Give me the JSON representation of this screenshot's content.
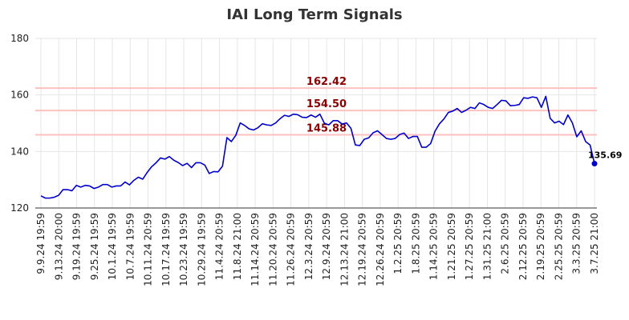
{
  "chart_data": {
    "type": "line",
    "title": "IAI Long Term Signals",
    "xlabel": "",
    "ylabel": "",
    "ylim": [
      120,
      180
    ],
    "yticks": [
      120,
      140,
      160,
      180
    ],
    "grid": true,
    "legend": "none",
    "line_color": "#0000cc",
    "level_color": "#8b0000",
    "level_line_color": "#ffc0c0",
    "levels": [
      {
        "value": 162.42,
        "label": "162.42"
      },
      {
        "value": 154.5,
        "label": "154.50"
      },
      {
        "value": 145.88,
        "label": "145.88"
      }
    ],
    "last_label": "135.69",
    "x_tick_labels": [
      "9.9.24 19:59",
      "9.13.24 20:00",
      "9.19.24 19:59",
      "9.25.24 19:59",
      "10.1.24 19:59",
      "10.7.24 19:59",
      "10.11.24 20:59",
      "10.17.24 19:59",
      "10.23.24 19:59",
      "10.29.24 19:59",
      "11.4.24 20:59",
      "11.8.24 21:00",
      "11.14.24 20:59",
      "11.20.24 20:59",
      "11.26.24 20:59",
      "12.3.24 20:59",
      "12.9.24 20:59",
      "12.13.24 21:00",
      "12.19.24 20:59",
      "12.26.24 20:59",
      "1.2.25 20:59",
      "1.8.25 20:59",
      "1.14.25 20:59",
      "1.21.25 20:59",
      "1.27.25 20:59",
      "1.31.25 21:00",
      "2.6.25 20:59",
      "2.12.25 20:59",
      "2.19.25 20:59",
      "2.25.25 20:59",
      "3.3.25 20:59",
      "3.7.25 21:00"
    ],
    "values": [
      124.3,
      123.5,
      123.5,
      123.8,
      124.5,
      126.5,
      126.5,
      126.1,
      128.0,
      127.4,
      128.0,
      127.8,
      126.9,
      127.4,
      128.3,
      128.3,
      127.4,
      127.8,
      127.8,
      129.2,
      128.2,
      129.8,
      130.9,
      130.2,
      132.6,
      134.6,
      136.0,
      137.7,
      137.3,
      138.2,
      136.9,
      136.1,
      135.0,
      135.8,
      134.3,
      136.0,
      136.0,
      135.2,
      132.2,
      132.9,
      132.8,
      134.8,
      144.9,
      143.5,
      145.7,
      150.1,
      149.2,
      148.0,
      147.6,
      148.4,
      149.8,
      149.4,
      149.2,
      150.1,
      151.6,
      152.8,
      152.4,
      153.2,
      153.0,
      152.1,
      152.0,
      152.9,
      152.1,
      153.2,
      150.0,
      149.4,
      150.9,
      150.9,
      149.7,
      150.1,
      148.2,
      142.3,
      142.1,
      144.3,
      144.8,
      146.6,
      147.3,
      146.0,
      144.6,
      144.3,
      144.6,
      146.0,
      146.5,
      144.6,
      145.3,
      145.3,
      141.5,
      141.5,
      142.8,
      147.2,
      149.8,
      151.5,
      153.8,
      154.3,
      155.2,
      153.8,
      154.6,
      155.6,
      155.2,
      157.2,
      156.6,
      155.6,
      155.2,
      156.6,
      158.1,
      157.9,
      156.2,
      156.3,
      156.6,
      159.0,
      158.8,
      159.3,
      159.0,
      155.6,
      159.5,
      151.7,
      150.1,
      150.7,
      149.5,
      152.9,
      150.1,
      145.2,
      147.3,
      143.5,
      142.3,
      135.69
    ]
  }
}
